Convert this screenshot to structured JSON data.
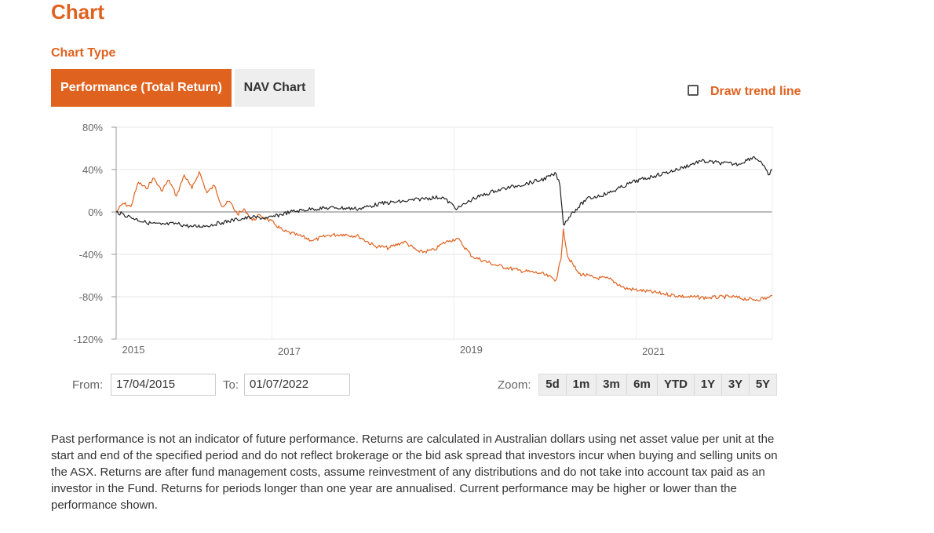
{
  "page": {
    "title": "Chart"
  },
  "chart_type": {
    "label": "Chart Type",
    "tabs": [
      {
        "label": "Performance (Total Return)",
        "active": true
      },
      {
        "label": "NAV Chart",
        "active": false
      }
    ]
  },
  "trend_line": {
    "label": "Draw trend line",
    "checked": false
  },
  "range": {
    "from_label": "From:",
    "from_value": "17/04/2015",
    "to_label": "To:",
    "to_value": "01/07/2022"
  },
  "zoom": {
    "label": "Zoom:",
    "buttons": [
      "5d",
      "1m",
      "3m",
      "6m",
      "YTD",
      "1Y",
      "3Y",
      "5Y"
    ]
  },
  "disclaimer": "Past performance is not an indicator of future performance. Returns are calculated in Australian dollars using net asset value per unit at the start and end of the specified period and do not reflect brokerage or the bid ask spread that investors incur when buying and selling units on the ASX. Returns are after fund management costs, assume reinvestment of any distributions and do not take into account tax paid as an investor in the Fund. Returns for periods longer than one year are annualised. Current performance may be higher or lower than the performance shown.",
  "colors": {
    "accent": "#e0621f",
    "series_dark": "#222222"
  },
  "chart_data": {
    "type": "line",
    "x_range": [
      "2015-04-17",
      "2022-07-01"
    ],
    "ylim": [
      -120,
      80
    ],
    "y_ticks": [
      "80%",
      "40%",
      "0%",
      "-40%",
      "-80%",
      "-120%"
    ],
    "y_tick_values": [
      80,
      40,
      0,
      -40,
      -80,
      -120
    ],
    "x_tick_labels": [
      "2015",
      "2017",
      "2019",
      "2021"
    ],
    "x_tick_dates": [
      "2015-04-17",
      "2017-01-01",
      "2019-01-01",
      "2021-01-01"
    ],
    "grid": true,
    "series": [
      {
        "color": "#e0621f",
        "points": [
          [
            "2015-04-17",
            0
          ],
          [
            "2015-05-15",
            8
          ],
          [
            "2015-06-15",
            5
          ],
          [
            "2015-07-15",
            28
          ],
          [
            "2015-08-15",
            22
          ],
          [
            "2015-09-15",
            32
          ],
          [
            "2015-10-15",
            20
          ],
          [
            "2015-11-15",
            30
          ],
          [
            "2015-12-15",
            15
          ],
          [
            "2016-01-15",
            35
          ],
          [
            "2016-02-15",
            22
          ],
          [
            "2016-03-15",
            38
          ],
          [
            "2016-04-15",
            18
          ],
          [
            "2016-05-15",
            25
          ],
          [
            "2016-06-15",
            5
          ],
          [
            "2016-07-15",
            10
          ],
          [
            "2016-08-15",
            -2
          ],
          [
            "2016-09-15",
            2
          ],
          [
            "2016-10-15",
            -8
          ],
          [
            "2016-11-15",
            -3
          ],
          [
            "2016-12-15",
            -7
          ],
          [
            "2017-01-15",
            -12
          ],
          [
            "2017-02-15",
            -18
          ],
          [
            "2017-04-15",
            -22
          ],
          [
            "2017-06-15",
            -27
          ],
          [
            "2017-08-15",
            -22
          ],
          [
            "2017-10-15",
            -21
          ],
          [
            "2017-12-15",
            -23
          ],
          [
            "2018-02-15",
            -32
          ],
          [
            "2018-04-15",
            -34
          ],
          [
            "2018-06-15",
            -28
          ],
          [
            "2018-08-15",
            -38
          ],
          [
            "2018-10-15",
            -36
          ],
          [
            "2018-11-15",
            -30
          ],
          [
            "2018-12-15",
            -27
          ],
          [
            "2019-01-15",
            -25
          ],
          [
            "2019-03-15",
            -42
          ],
          [
            "2019-06-15",
            -50
          ],
          [
            "2019-09-15",
            -55
          ],
          [
            "2019-12-15",
            -58
          ],
          [
            "2020-02-15",
            -64
          ],
          [
            "2020-03-05",
            -45
          ],
          [
            "2020-03-15",
            -16
          ],
          [
            "2020-04-01",
            -42
          ],
          [
            "2020-05-15",
            -58
          ],
          [
            "2020-07-15",
            -62
          ],
          [
            "2020-09-15",
            -63
          ],
          [
            "2020-11-15",
            -72
          ],
          [
            "2021-01-15",
            -74
          ],
          [
            "2021-04-15",
            -77
          ],
          [
            "2021-07-15",
            -80
          ],
          [
            "2021-10-15",
            -81
          ],
          [
            "2022-01-15",
            -80
          ],
          [
            "2022-04-15",
            -83
          ],
          [
            "2022-06-15",
            -81
          ],
          [
            "2022-07-01",
            -79
          ]
        ]
      },
      {
        "color": "#222222",
        "points": [
          [
            "2015-04-17",
            0
          ],
          [
            "2015-06-15",
            -5
          ],
          [
            "2015-08-15",
            -10
          ],
          [
            "2015-10-15",
            -12
          ],
          [
            "2015-12-15",
            -11
          ],
          [
            "2016-02-15",
            -14
          ],
          [
            "2016-04-15",
            -13
          ],
          [
            "2016-06-15",
            -10
          ],
          [
            "2016-08-15",
            -7
          ],
          [
            "2016-10-15",
            -5
          ],
          [
            "2016-12-15",
            -6
          ],
          [
            "2017-03-15",
            0
          ],
          [
            "2017-06-15",
            3
          ],
          [
            "2017-09-15",
            4
          ],
          [
            "2017-12-15",
            3
          ],
          [
            "2018-03-15",
            8
          ],
          [
            "2018-06-15",
            10
          ],
          [
            "2018-09-15",
            13
          ],
          [
            "2018-11-15",
            14
          ],
          [
            "2019-01-15",
            3
          ],
          [
            "2019-03-15",
            12
          ],
          [
            "2019-06-15",
            20
          ],
          [
            "2019-09-15",
            25
          ],
          [
            "2019-12-15",
            30
          ],
          [
            "2020-02-15",
            36
          ],
          [
            "2020-03-01",
            25
          ],
          [
            "2020-03-15",
            -12
          ],
          [
            "2020-04-15",
            -2
          ],
          [
            "2020-06-15",
            12
          ],
          [
            "2020-09-15",
            18
          ],
          [
            "2020-12-15",
            28
          ],
          [
            "2021-03-15",
            34
          ],
          [
            "2021-06-15",
            40
          ],
          [
            "2021-09-15",
            48
          ],
          [
            "2021-12-15",
            46
          ],
          [
            "2022-02-15",
            45
          ],
          [
            "2022-04-15",
            52
          ],
          [
            "2022-05-15",
            48
          ],
          [
            "2022-06-15",
            35
          ],
          [
            "2022-07-01",
            40
          ]
        ]
      }
    ]
  }
}
